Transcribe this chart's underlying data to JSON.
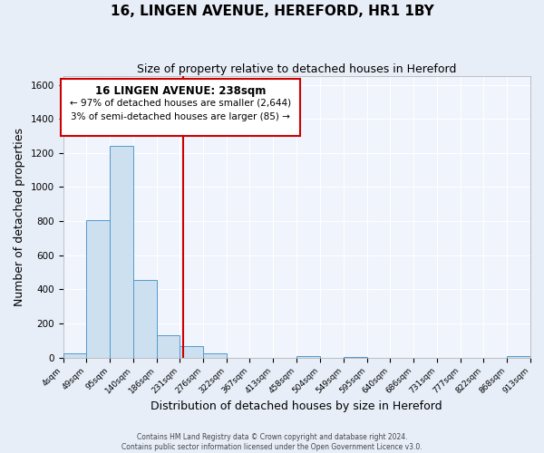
{
  "title": "16, LINGEN AVENUE, HEREFORD, HR1 1BY",
  "subtitle": "Size of property relative to detached houses in Hereford",
  "xlabel": "Distribution of detached houses by size in Hereford",
  "ylabel": "Number of detached properties",
  "bin_edges": [
    4,
    49,
    95,
    140,
    186,
    231,
    276,
    322,
    367,
    413,
    458,
    504,
    549,
    595,
    640,
    686,
    731,
    777,
    822,
    868,
    913
  ],
  "bar_heights": [
    25,
    805,
    1240,
    455,
    130,
    65,
    25,
    0,
    0,
    0,
    10,
    0,
    5,
    0,
    0,
    0,
    0,
    0,
    0,
    10
  ],
  "bar_color": "#cce0f0",
  "bar_edge_color": "#5599cc",
  "property_value": 238,
  "red_line_color": "#cc0000",
  "annotation_box_edge_color": "#cc0000",
  "annotation_line1": "16 LINGEN AVENUE: 238sqm",
  "annotation_line2": "← 97% of detached houses are smaller (2,644)",
  "annotation_line3": "3% of semi-detached houses are larger (85) →",
  "ylim": [
    0,
    1650
  ],
  "yticks": [
    0,
    200,
    400,
    600,
    800,
    1000,
    1200,
    1400,
    1600
  ],
  "footer_line1": "Contains HM Land Registry data © Crown copyright and database right 2024.",
  "footer_line2": "Contains public sector information licensed under the Open Government Licence v3.0.",
  "background_color": "#e8eef8",
  "plot_bg_color": "#f0f4fc",
  "grid_color": "#ffffff",
  "title_fontsize": 11,
  "subtitle_fontsize": 9,
  "xlabel_fontsize": 9,
  "ylabel_fontsize": 9,
  "tick_fontsize": 6.5,
  "annotation_fontsize_title": 8.5,
  "annotation_fontsize_body": 7.5
}
